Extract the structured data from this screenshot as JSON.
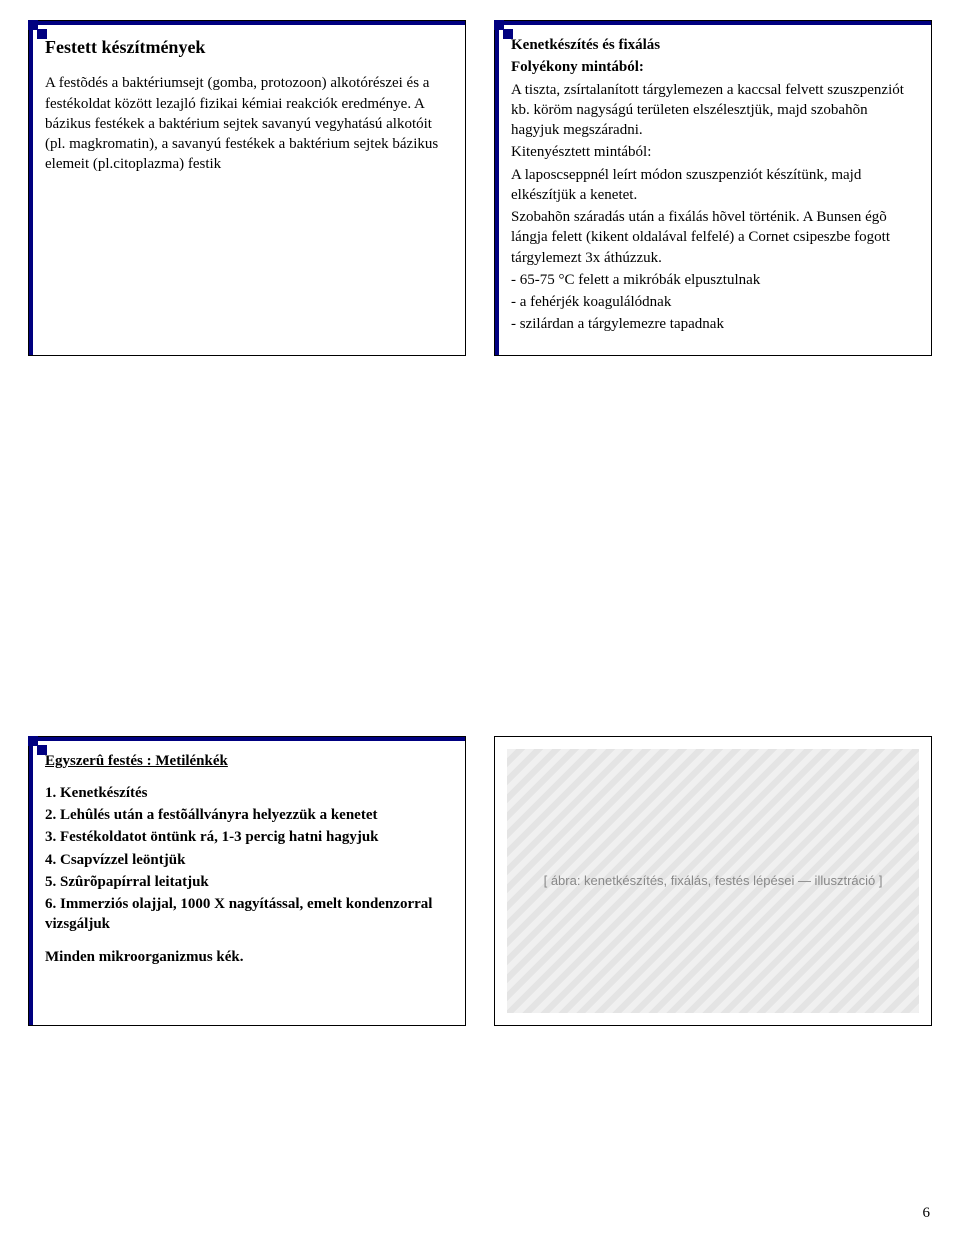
{
  "slide1": {
    "title": "Festett készítmények",
    "p1": "A festõdés a baktériumsejt (gomba, protozoon) alkotórészei és a festékoldat között lezajló fizikai kémiai reakciók eredménye. A bázikus festékek a baktérium sejtek savanyú vegyhatású alkotóit (pl. magkromatin), a savanyú festékek a baktérium sejtek bázikus elemeit (pl.citoplazma) festik"
  },
  "slide2": {
    "h1": "Kenetkészítés és fixálás",
    "h2": "Folyékony mintából:",
    "p1": "A tiszta, zsírtalanított tárgylemezen a kaccsal felvett szuszpenziót kb. köröm nagyságú területen elszélesztjük, majd szobahõn hagyjuk megszáradni.",
    "h3": "Kitenyésztett mintából:",
    "p2": "A laposcseppnél leírt módon szuszpenziót készítünk, majd elkészítjük a kenetet.",
    "p3": "Szobahõn száradás után a fixálás hõvel történik. A Bunsen égõ lángja felett (kikent oldalával felfelé) a Cornet csipeszbe fogott tárgylemezt 3x áthúzzuk.",
    "b1": "- 65-75 °C felett a mikróbák elpusztulnak",
    "b2": "- a fehérjék koagulálódnak",
    "b3": "- szilárdan a tárgylemezre tapadnak"
  },
  "slide3": {
    "title": "Egyszerû festés : Metilénkék",
    "l1": "1. Kenetkészítés",
    "l2": "2. Lehûlés után a festõállványra helyezzük a kenetet",
    "l3": "3. Festékoldatot öntünk rá, 1-3 percig hatni hagyjuk",
    "l4": "4. Csapvízzel leöntjük",
    "l5": "5. Szûrõpapírral leitatjuk",
    "l6": "6. Immerziós olajjal, 1000 X nagyítással, emelt kondenzorral vizsgáljuk",
    "end": "Minden mikroorganizmus kék."
  },
  "slide4": {
    "placeholder": "[ ábra: kenetkészítés, fixálás, festés lépései — illusztráció ]"
  },
  "pageNumber": "6",
  "colors": {
    "accent": "#000080",
    "text": "#000000",
    "bg": "#ffffff"
  }
}
